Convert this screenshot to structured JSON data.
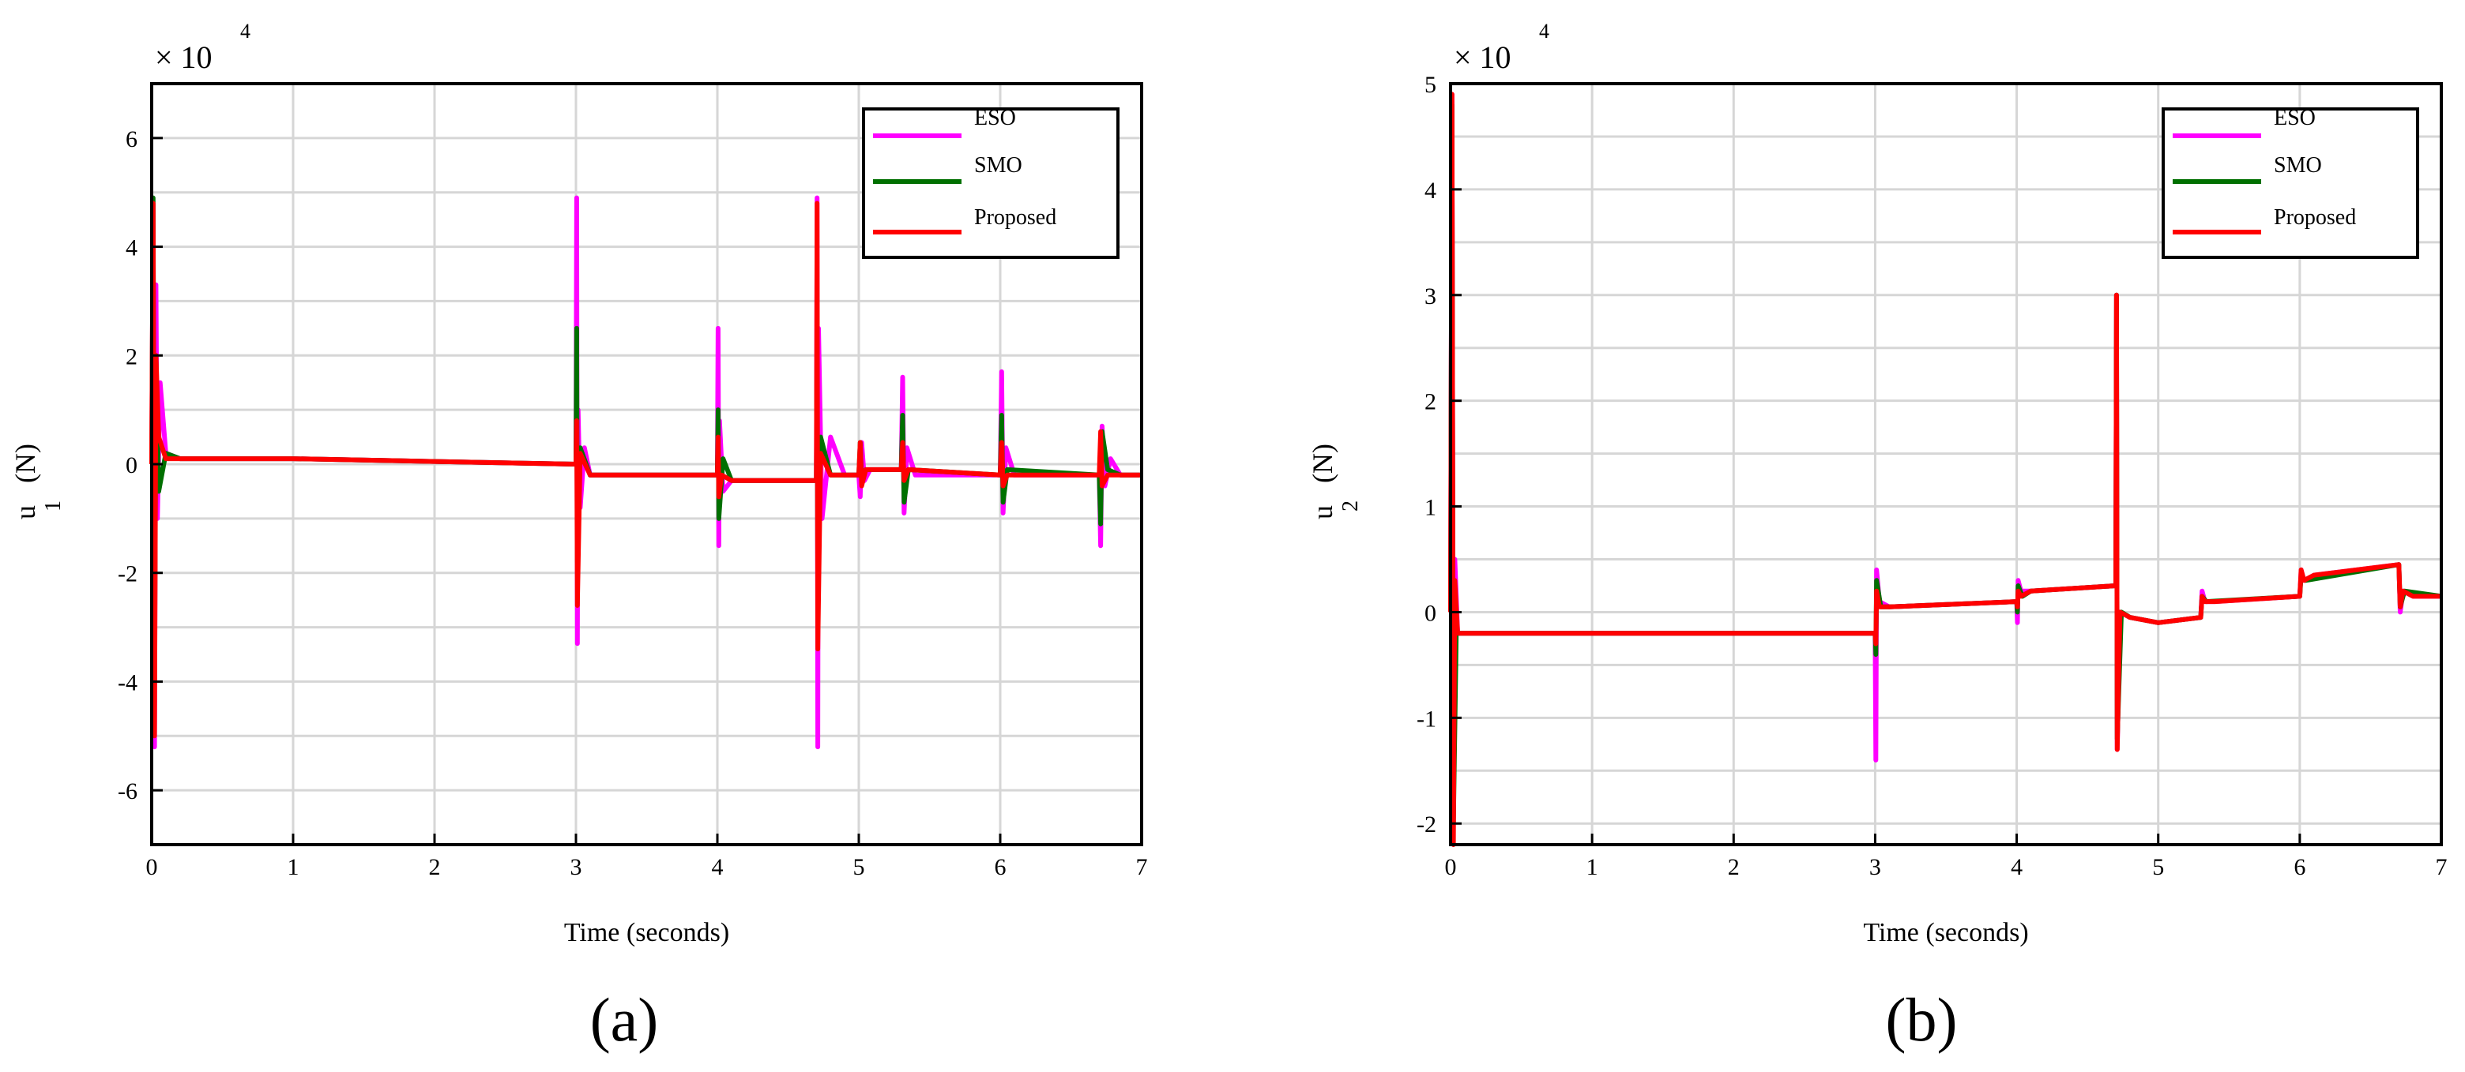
{
  "figure": {
    "panels": [
      {
        "label": "(a)"
      },
      {
        "label": "(b)"
      }
    ]
  },
  "chart_data": [
    {
      "type": "line",
      "panel": "(a)",
      "title": "",
      "xlabel": "Time (seconds)",
      "ylabel_main": "u",
      "ylabel_sub": "1",
      "ylabel_unit": "(N)",
      "exponent_label": "× 10",
      "exponent_power": "4",
      "xlim": [
        0,
        7
      ],
      "ylim": [
        -7,
        7
      ],
      "x_ticks": [
        0,
        1,
        2,
        3,
        4,
        5,
        6,
        7
      ],
      "x_tick_labels": [
        "0",
        "1",
        "2",
        "3",
        "4",
        "5",
        "6",
        "7"
      ],
      "y_ticks": [
        -6,
        -4,
        -2,
        0,
        2,
        4,
        6
      ],
      "y_tick_labels": [
        "-6",
        "-4",
        "-2",
        "0",
        "2",
        "4",
        "6"
      ],
      "y_grid": [
        -6,
        -5,
        -4,
        -3,
        -2,
        -1,
        0,
        1,
        2,
        3,
        4,
        5,
        6
      ],
      "grid": true,
      "legend_position": "top-right",
      "series": [
        {
          "name": "ESO",
          "color": "#ff00ff",
          "x": [
            0,
            0.01,
            0.02,
            0.03,
            0.04,
            0.06,
            0.1,
            0.2,
            1,
            2,
            3,
            3.005,
            3.01,
            3.015,
            3.03,
            3.06,
            3.1,
            3.2,
            4,
            4.005,
            4.01,
            4.015,
            4.04,
            4.1,
            4.2,
            4.7,
            4.705,
            4.71,
            4.715,
            4.74,
            4.8,
            4.9,
            5,
            5.01,
            5.02,
            5.04,
            5.08,
            5.3,
            5.31,
            5.32,
            5.34,
            5.4,
            6,
            6.01,
            6.02,
            6.04,
            6.1,
            6.7,
            6.71,
            6.72,
            6.74,
            6.78,
            6.85,
            7
          ],
          "values": [
            0,
            4.8,
            -5.2,
            3.3,
            -1.0,
            1.5,
            0.2,
            0.1,
            0.1,
            0.05,
            0,
            4.9,
            -3.3,
            1.0,
            -0.8,
            0.3,
            -0.2,
            -0.2,
            -0.2,
            2.5,
            -1.5,
            0.8,
            -0.5,
            -0.3,
            -0.3,
            -0.3,
            4.9,
            -5.2,
            2.5,
            -1.0,
            0.5,
            -0.2,
            -0.2,
            -0.6,
            0.4,
            -0.3,
            -0.1,
            -0.1,
            1.6,
            -0.9,
            0.3,
            -0.2,
            -0.2,
            1.7,
            -0.9,
            0.3,
            -0.2,
            -0.2,
            -1.5,
            0.7,
            -0.4,
            0.1,
            -0.2,
            -0.2
          ]
        },
        {
          "name": "SMO",
          "color": "#007000",
          "x": [
            0,
            0.01,
            0.02,
            0.03,
            0.05,
            0.1,
            0.2,
            1,
            2,
            3,
            3.005,
            3.01,
            3.03,
            3.1,
            4,
            4.005,
            4.01,
            4.04,
            4.1,
            4.7,
            4.705,
            4.71,
            4.73,
            4.8,
            5,
            5.01,
            5.02,
            5.05,
            5.3,
            5.31,
            5.32,
            5.35,
            6,
            6.01,
            6.02,
            6.05,
            6.7,
            6.71,
            6.72,
            6.76,
            6.85,
            7
          ],
          "values": [
            0,
            4.9,
            -4.0,
            2.0,
            -0.5,
            0.2,
            0.1,
            0.1,
            0.05,
            0,
            2.5,
            -1.8,
            0.3,
            -0.2,
            -0.2,
            1.0,
            -1.0,
            0.1,
            -0.3,
            -0.3,
            2.5,
            -2.5,
            0.5,
            -0.2,
            -0.2,
            0.4,
            -0.3,
            -0.1,
            -0.1,
            0.9,
            -0.7,
            -0.1,
            -0.2,
            0.9,
            -0.7,
            -0.1,
            -0.2,
            -1.1,
            0.6,
            -0.1,
            -0.2,
            -0.2
          ]
        },
        {
          "name": "Proposed",
          "color": "#ff0000",
          "x": [
            0,
            0.01,
            0.02,
            0.03,
            0.05,
            0.1,
            0.2,
            1,
            2,
            3,
            3.005,
            3.01,
            3.03,
            3.1,
            4,
            4.005,
            4.01,
            4.03,
            4.1,
            4.7,
            4.705,
            4.71,
            4.73,
            4.8,
            5,
            5.01,
            5.02,
            5.05,
            5.3,
            5.31,
            5.32,
            5.35,
            6,
            6.01,
            6.02,
            6.05,
            6.7,
            6.71,
            6.72,
            6.76,
            6.85,
            7
          ],
          "values": [
            0,
            4.8,
            -5.0,
            2.0,
            0.5,
            0.1,
            0.1,
            0.1,
            0.05,
            0,
            0.8,
            -2.6,
            0.2,
            -0.2,
            -0.2,
            0.5,
            -0.6,
            -0.2,
            -0.3,
            -0.3,
            4.8,
            -3.4,
            0.2,
            -0.2,
            -0.2,
            0.4,
            -0.4,
            -0.1,
            -0.1,
            0.4,
            -0.3,
            -0.1,
            -0.2,
            0.4,
            -0.4,
            -0.2,
            -0.2,
            0.6,
            -0.4,
            -0.2,
            -0.2,
            -0.2
          ]
        }
      ]
    },
    {
      "type": "line",
      "panel": "(b)",
      "title": "",
      "xlabel": "Time (seconds)",
      "ylabel_main": "u",
      "ylabel_sub": "2",
      "ylabel_unit": "(N)",
      "exponent_label": "× 10",
      "exponent_power": "4",
      "xlim": [
        0,
        7
      ],
      "ylim": [
        -2.2,
        5
      ],
      "x_ticks": [
        0,
        1,
        2,
        3,
        4,
        5,
        6,
        7
      ],
      "x_tick_labels": [
        "0",
        "1",
        "2",
        "3",
        "4",
        "5",
        "6",
        "7"
      ],
      "y_ticks": [
        -2,
        -1,
        0,
        1,
        2,
        3,
        4,
        5
      ],
      "y_tick_labels": [
        "-2",
        "-1",
        "0",
        "1",
        "2",
        "3",
        "4",
        "5"
      ],
      "y_grid": [
        -2,
        -1.5,
        -1,
        -0.5,
        0,
        0.5,
        1,
        1.5,
        2,
        2.5,
        3,
        3.5,
        4,
        4.5
      ],
      "grid": true,
      "legend_position": "top-right",
      "series": [
        {
          "name": "ESO",
          "color": "#ff00ff",
          "x": [
            0,
            0.01,
            0.02,
            0.03,
            0.05,
            0.1,
            1,
            2,
            3,
            3.005,
            3.01,
            3.03,
            3.1,
            4,
            4.005,
            4.01,
            4.03,
            4.1,
            4.7,
            4.705,
            4.71,
            4.73,
            4.8,
            5,
            5.3,
            5.31,
            5.33,
            5.4,
            6,
            6.01,
            6.03,
            6.1,
            6.7,
            6.71,
            6.73,
            6.8,
            7
          ],
          "values": [
            0,
            4.9,
            -2.0,
            0.5,
            -0.2,
            -0.2,
            -0.2,
            -0.2,
            -0.2,
            -1.4,
            0.4,
            0.1,
            0.05,
            0.1,
            -0.1,
            0.3,
            0.2,
            0.2,
            0.25,
            3.0,
            -1.3,
            0.0,
            -0.05,
            -0.1,
            -0.05,
            0.2,
            0.1,
            0.1,
            0.15,
            0.4,
            0.3,
            0.35,
            0.45,
            0.0,
            0.2,
            0.15,
            0.15
          ]
        },
        {
          "name": "SMO",
          "color": "#007000",
          "x": [
            0,
            0.01,
            0.02,
            0.04,
            0.1,
            1,
            2,
            3,
            3.005,
            3.01,
            3.04,
            3.1,
            4,
            4.005,
            4.01,
            4.04,
            4.1,
            4.7,
            4.705,
            4.71,
            4.74,
            4.8,
            5,
            5.3,
            5.31,
            5.34,
            6,
            6.01,
            6.04,
            6.7,
            6.71,
            6.74,
            7
          ],
          "values": [
            0,
            4.8,
            -2.0,
            -0.2,
            -0.2,
            -0.2,
            -0.2,
            -0.2,
            -0.4,
            0.3,
            0.05,
            0.05,
            0.1,
            0.0,
            0.25,
            0.15,
            0.2,
            0.25,
            3.0,
            -1.2,
            0.0,
            -0.05,
            -0.1,
            -0.05,
            0.15,
            0.1,
            0.15,
            0.35,
            0.3,
            0.45,
            0.05,
            0.2,
            0.15
          ]
        },
        {
          "name": "Proposed",
          "color": "#ff0000",
          "x": [
            0,
            0.01,
            0.02,
            0.03,
            0.05,
            0.1,
            1,
            2,
            3,
            3.005,
            3.01,
            3.03,
            3.1,
            4,
            4.005,
            4.01,
            4.03,
            4.1,
            4.7,
            4.705,
            4.71,
            4.73,
            4.8,
            5,
            5.3,
            5.31,
            5.33,
            5.4,
            6,
            6.01,
            6.03,
            6.1,
            6.7,
            6.71,
            6.73,
            6.8,
            7
          ],
          "values": [
            0,
            4.9,
            -2.2,
            0.3,
            -0.2,
            -0.2,
            -0.2,
            -0.2,
            -0.2,
            -0.3,
            0.2,
            0.05,
            0.05,
            0.1,
            0.05,
            0.2,
            0.15,
            0.2,
            0.25,
            3.0,
            -1.3,
            0.0,
            -0.05,
            -0.1,
            -0.05,
            0.15,
            0.1,
            0.1,
            0.15,
            0.4,
            0.3,
            0.35,
            0.45,
            0.05,
            0.2,
            0.15,
            0.15
          ]
        }
      ]
    }
  ]
}
